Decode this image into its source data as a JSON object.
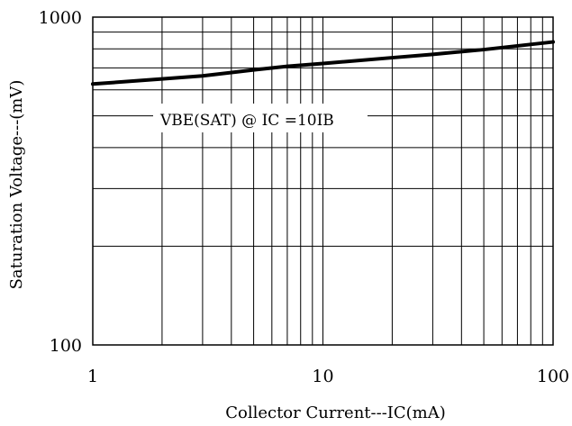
{
  "chart_data": {
    "type": "line",
    "xscale": "log",
    "yscale": "log",
    "xlim": [
      1,
      100
    ],
    "ylim": [
      100,
      1000
    ],
    "xlabel": "Collector Current---IC(mA)",
    "ylabel": "Saturation Voltage---(mV)",
    "x_ticks": [
      "1",
      "10",
      "100"
    ],
    "y_ticks": [
      "100",
      "1000"
    ],
    "grid": true,
    "annotation": "VBE(SAT) @ IC =10IB",
    "series": [
      {
        "x": [
          1,
          2,
          3,
          5,
          7,
          10,
          20,
          30,
          50,
          100
        ],
        "y": [
          625,
          648,
          662,
          690,
          708,
          722,
          752,
          770,
          796,
          840
        ]
      }
    ]
  }
}
